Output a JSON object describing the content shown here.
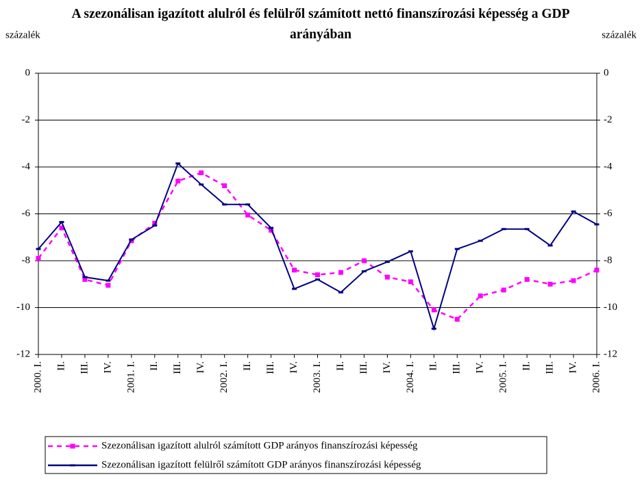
{
  "chart_data": {
    "type": "line",
    "title": "A szezonálisan igazított alulról és felülről számított nettó finanszírozási képesség a GDP arányában",
    "ylabel": "százalék",
    "y2label": "százalék",
    "categories": [
      "2000. I.",
      "II.",
      "III.",
      "IV.",
      "2001. I.",
      "II.",
      "III.",
      "IV.",
      "2002. I.",
      "II.",
      "III.",
      "IV.",
      "2003. I.",
      "II.",
      "III.",
      "IV.",
      "2004. I.",
      "II.",
      "III.",
      "IV.",
      "2005. I.",
      "II.",
      "III.",
      "IV.",
      "2006. I."
    ],
    "series": [
      {
        "name": "Szezonálisan igazított alulról számított GDP arányos finanszírozási képesség",
        "color": "#ff00ff",
        "dashed": true,
        "values": [
          -7.9,
          -6.6,
          -8.8,
          -9.05,
          -7.15,
          -6.4,
          -4.6,
          -4.25,
          -4.8,
          -6.05,
          -6.7,
          -8.4,
          -8.6,
          -8.5,
          -8.0,
          -8.7,
          -8.9,
          -10.1,
          -10.5,
          -9.5,
          -9.25,
          -8.8,
          -9.0,
          -8.85,
          -8.4
        ]
      },
      {
        "name": "Szezonálisan igazított felülről számított GDP arányos finanszírozási képesség",
        "color": "#000080",
        "dashed": false,
        "values": [
          -7.5,
          -6.35,
          -8.7,
          -8.85,
          -7.1,
          -6.5,
          -3.85,
          -4.75,
          -5.6,
          -5.6,
          -6.6,
          -9.2,
          -8.8,
          -9.35,
          -8.45,
          -8.05,
          -7.6,
          -10.9,
          -7.5,
          -7.15,
          -6.65,
          -6.65,
          -7.35,
          -5.9,
          -6.45
        ]
      }
    ],
    "ylim": [
      -12,
      0
    ],
    "yticks": [
      0,
      -2,
      -4,
      -6,
      -8,
      -10,
      -12
    ],
    "y2lim": [
      -12,
      0
    ],
    "y2ticks": [
      0,
      -2,
      -4,
      -6,
      -8,
      -10,
      -12
    ],
    "grid": true
  }
}
